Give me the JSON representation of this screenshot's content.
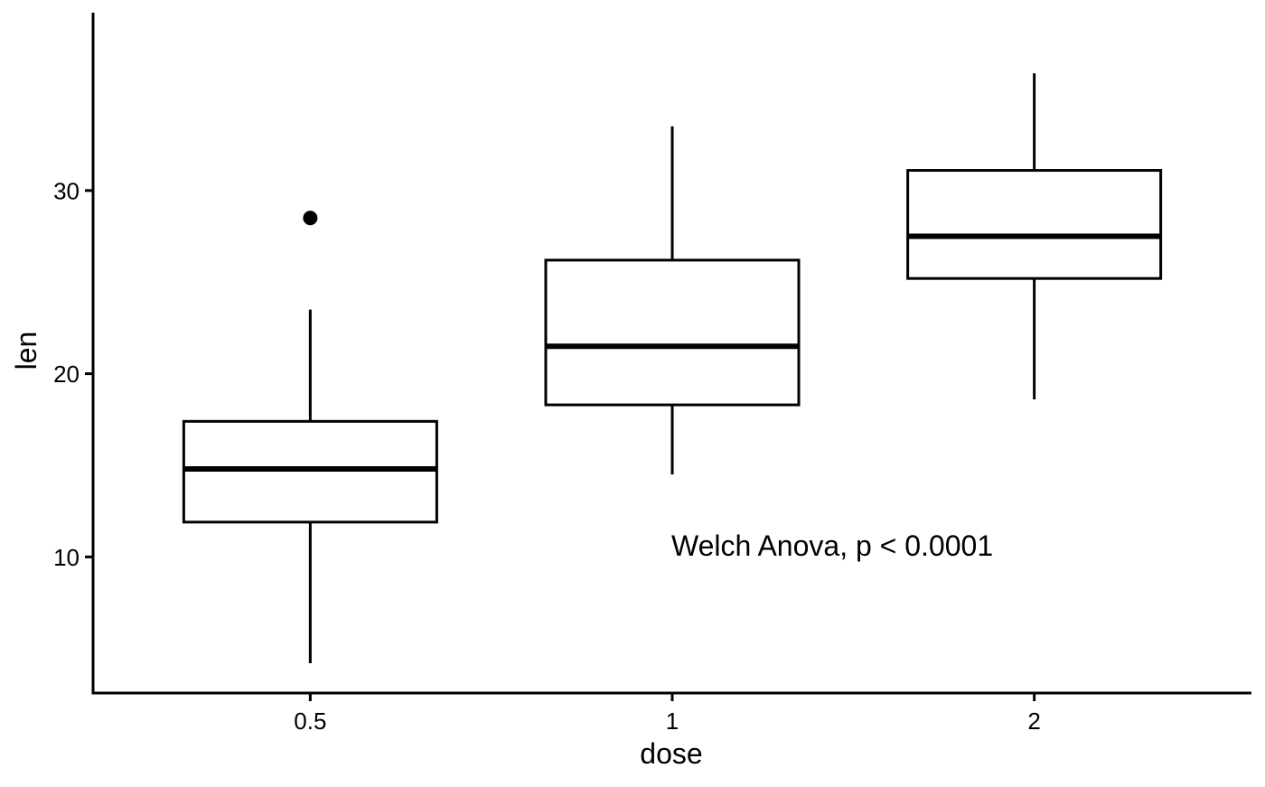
{
  "page": {
    "background_color": "#ffffff",
    "foreground_color": "#000000"
  },
  "chart_data": {
    "type": "boxplot",
    "title": "",
    "xlabel": "dose",
    "ylabel": "len",
    "categories": [
      "0.5",
      "1",
      "2"
    ],
    "y_ticks": [
      10,
      20,
      30
    ],
    "y_tick_labels": [
      "10",
      "20",
      "30"
    ],
    "ylim": [
      2.57,
      39.71
    ],
    "grid": false,
    "legend": "none",
    "annotation": {
      "text": "Welch Anova, p < 0.0001"
    },
    "series": [
      {
        "category": "0.5",
        "whisker_low": 4.2,
        "q1": 11.9,
        "median": 14.8,
        "q3": 17.4,
        "whisker_high": 23.5,
        "outliers": [
          28.5
        ]
      },
      {
        "category": "1",
        "whisker_low": 14.5,
        "q1": 18.3,
        "median": 21.5,
        "q3": 26.2,
        "whisker_high": 33.5,
        "outliers": []
      },
      {
        "category": "2",
        "whisker_low": 18.6,
        "q1": 25.2,
        "median": 27.5,
        "q3": 31.1,
        "whisker_high": 36.4,
        "outliers": []
      }
    ],
    "style": {
      "stroke_color": "#000000",
      "box_fill_color": "#ffffff",
      "background_color": "#ffffff"
    }
  }
}
